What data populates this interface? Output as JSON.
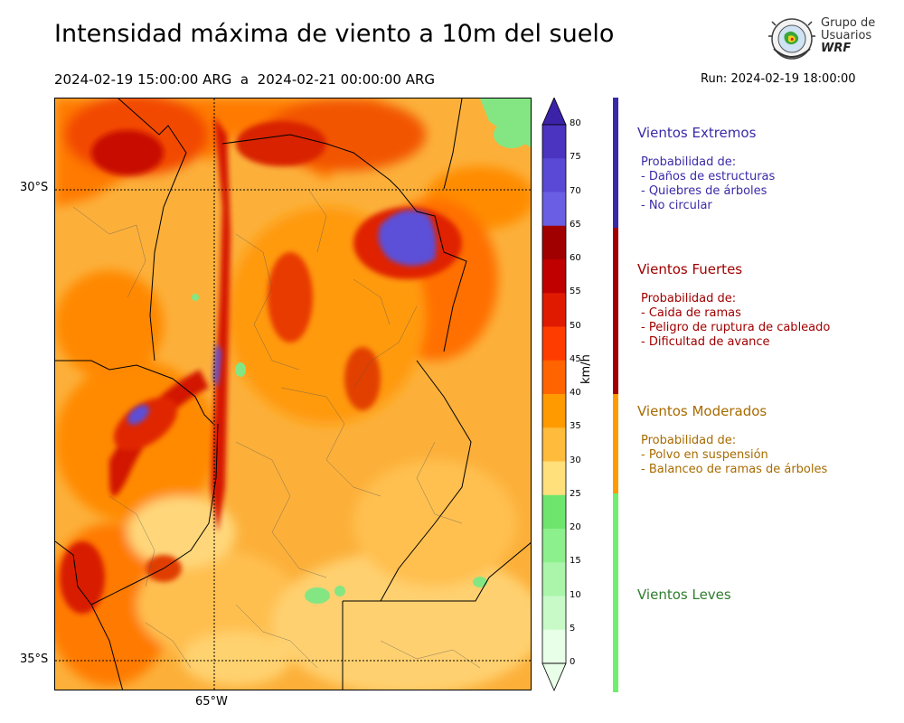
{
  "header": {
    "title": "Intensidad máxima de viento a 10m del suelo",
    "period": "2024-02-19 15:00:00 ARG  a  2024-02-21 00:00:00 ARG",
    "run": "Run: 2024-02-19 18:00:00"
  },
  "logo": {
    "line1": "Grupo de",
    "line2": "Usuarios",
    "line3": "WRF"
  },
  "map": {
    "lat_labels": [
      "30°S",
      "35°S"
    ],
    "lon_labels": [
      "65°W"
    ]
  },
  "colorbar": {
    "units": "km/h",
    "ticks": [
      "80",
      "75",
      "70",
      "65",
      "60",
      "55",
      "50",
      "45",
      "40",
      "35",
      "30",
      "25",
      "20",
      "15",
      "10",
      "5",
      "0"
    ],
    "colors": [
      "#3b22a8",
      "#4a34c0",
      "#5a48d6",
      "#6a5ee4",
      "#a00000",
      "#c00000",
      "#e01a00",
      "#ff3c00",
      "#ff6400",
      "#ff9a00",
      "#ffbb3c",
      "#ffe07a",
      "#6ee66e",
      "#8cf08c",
      "#aaf5aa",
      "#c8fac8",
      "#e8ffe8"
    ]
  },
  "categories": [
    {
      "title": "Vientos Extremos",
      "color": "#3a2aa8",
      "heading": "Probabilidad de:",
      "items": [
        "- Daños de estructuras",
        "- Quiebres de árboles",
        "- No circular"
      ]
    },
    {
      "title": "Vientos Fuertes",
      "color": "#a00000",
      "heading": "Probabilidad de:",
      "items": [
        "- Caida de ramas",
        "- Peligro de ruptura de cableado",
        "- Dificultad de avance"
      ]
    },
    {
      "title": "Vientos Moderados",
      "color": "#ff9a00",
      "text_color": "#a86b00",
      "heading": "Probabilidad de:",
      "items": [
        "- Polvo en suspensión",
        "- Balanceo de ramas de árboles"
      ]
    },
    {
      "title": "Vientos Leves",
      "color": "#6ef06e",
      "text_color": "#2f7d2f",
      "heading": "",
      "items": []
    }
  ]
}
